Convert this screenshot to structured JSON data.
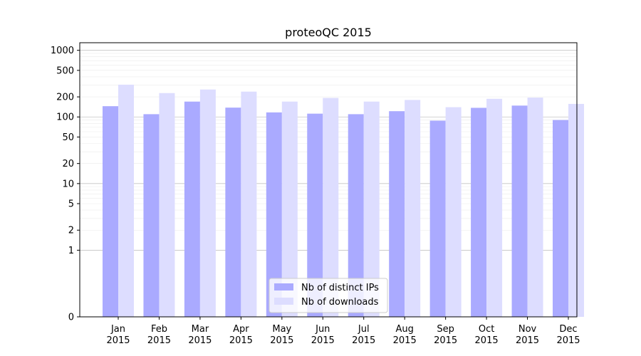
{
  "chart_data": {
    "type": "bar",
    "title": "proteoQC 2015",
    "xlabel": "",
    "ylabel": "",
    "yscale": "symlog",
    "ylim": [
      0,
      1300
    ],
    "yticks": [
      0,
      1,
      2,
      5,
      10,
      20,
      50,
      100,
      200,
      500,
      1000
    ],
    "ytick_labels": [
      "0",
      "1",
      "2",
      "5",
      "10",
      "20",
      "50",
      "100",
      "200",
      "500",
      "1000"
    ],
    "grid": true,
    "legend_position": "lower-center",
    "categories": [
      [
        "Jan",
        "2015"
      ],
      [
        "Feb",
        "2015"
      ],
      [
        "Mar",
        "2015"
      ],
      [
        "Apr",
        "2015"
      ],
      [
        "May",
        "2015"
      ],
      [
        "Jun",
        "2015"
      ],
      [
        "Jul",
        "2015"
      ],
      [
        "Aug",
        "2015"
      ],
      [
        "Sep",
        "2015"
      ],
      [
        "Oct",
        "2015"
      ],
      [
        "Nov",
        "2015"
      ],
      [
        "Dec",
        "2015"
      ]
    ],
    "series": [
      {
        "name": "Nb of distinct IPs",
        "color": "#aaaaff",
        "values": [
          145,
          110,
          170,
          138,
          117,
          112,
          110,
          122,
          88,
          137,
          148,
          90
        ]
      },
      {
        "name": "Nb of downloads",
        "color": "#ddddff",
        "values": [
          305,
          228,
          258,
          240,
          170,
          193,
          170,
          180,
          140,
          187,
          195,
          157
        ]
      }
    ]
  }
}
